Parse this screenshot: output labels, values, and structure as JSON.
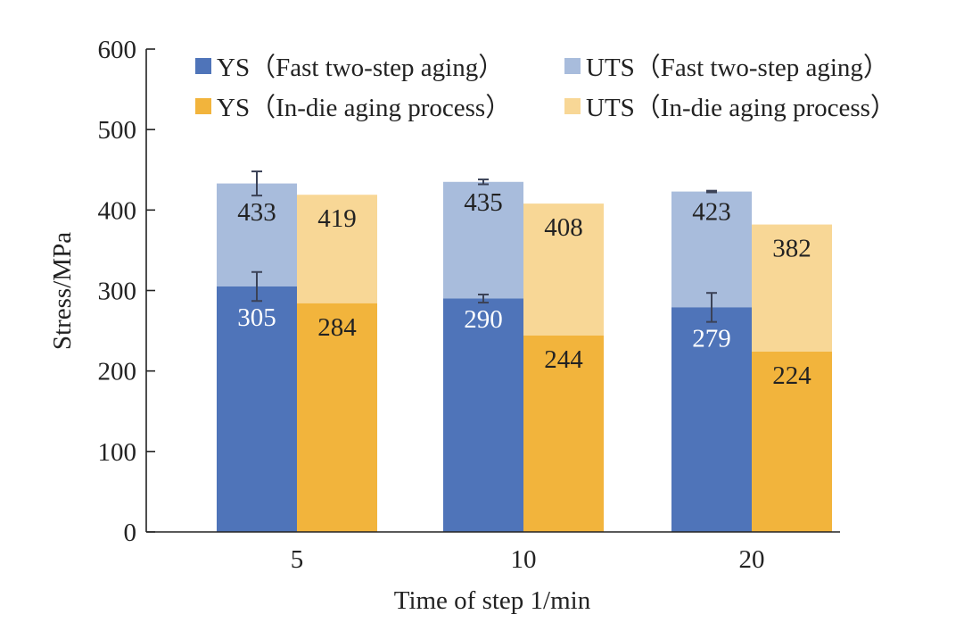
{
  "chart_data": {
    "type": "bar",
    "stacking": "overlaid",
    "categories": [
      "5",
      "10",
      "20"
    ],
    "xlabel": "Time of step 1/min",
    "ylabel": "Stress/MPa",
    "ylim": [
      0,
      600
    ],
    "yticks": [
      "0",
      "100",
      "200",
      "300",
      "400",
      "500",
      "600"
    ],
    "grid": false,
    "legend_position": "top",
    "groups": [
      {
        "ys": {
          "name": "YS（Fast two-step aging）",
          "values": [
            305,
            290,
            279
          ],
          "labels": [
            "305",
            "290",
            "279"
          ],
          "error": [
            18,
            5,
            18
          ],
          "color": "#4f74b9",
          "label_color": "#ffffff"
        },
        "uts": {
          "name": "UTS（Fast two-step aging）",
          "values": [
            433,
            435,
            423
          ],
          "labels": [
            "433",
            "435",
            "423"
          ],
          "error": [
            15,
            3,
            1
          ],
          "color": "#a8bcdc",
          "label_color": "#222222"
        }
      },
      {
        "ys": {
          "name": "YS（In-die aging process）",
          "values": [
            284,
            244,
            224
          ],
          "labels": [
            "284",
            "244",
            "224"
          ],
          "error": null,
          "color": "#f2b43c",
          "label_color": "#222222"
        },
        "uts": {
          "name": "UTS（In-die aging process）",
          "values": [
            419,
            408,
            382
          ],
          "labels": [
            "419",
            "408",
            "382"
          ],
          "error": null,
          "color": "#f8d796",
          "label_color": "#222222"
        }
      }
    ]
  }
}
